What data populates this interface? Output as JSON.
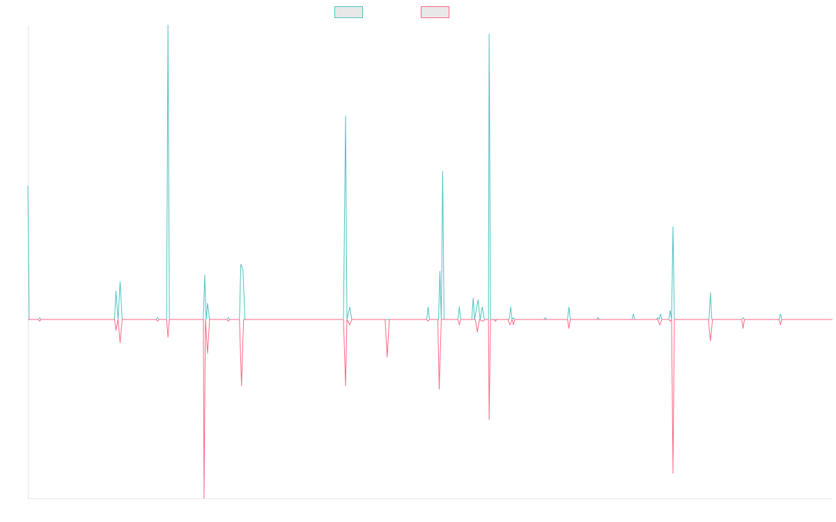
{
  "chart_data": {
    "type": "line",
    "title": "",
    "xlabel": "",
    "ylabel": "",
    "x_range": [
      0,
      1200
    ],
    "ylim": [
      -1.0,
      1.65
    ],
    "grid": false,
    "legend_placement": "top-center",
    "series": [
      {
        "color": "#4bc0c0",
        "fill": "#e8e8e8",
        "points": [
          [
            0,
            0.75
          ],
          [
            2,
            0
          ],
          [
            15,
            0
          ],
          [
            17,
            0.01
          ],
          [
            19,
            0
          ],
          [
            125,
            0
          ],
          [
            127,
            0.16
          ],
          [
            130,
            0
          ],
          [
            133,
            0.21
          ],
          [
            136,
            0
          ],
          [
            185,
            0
          ],
          [
            187,
            0.01
          ],
          [
            189,
            0
          ],
          [
            200,
            0
          ],
          [
            202,
            1.65
          ],
          [
            204,
            0
          ],
          [
            253,
            0
          ],
          [
            255,
            0.25
          ],
          [
            257,
            0
          ],
          [
            259,
            0.09
          ],
          [
            262,
            0
          ],
          [
            287,
            0
          ],
          [
            289,
            0.01
          ],
          [
            291,
            0
          ],
          [
            305,
            0
          ],
          [
            307,
            0.31
          ],
          [
            310,
            0.28
          ],
          [
            313,
            0
          ],
          [
            455,
            0
          ],
          [
            458,
            1.14
          ],
          [
            460,
            0
          ],
          [
            464,
            0.07
          ],
          [
            467,
            0
          ],
          [
            575,
            0
          ],
          [
            577,
            0.07
          ],
          [
            579,
            0
          ],
          [
            592,
            0
          ],
          [
            594,
            0.27
          ],
          [
            596,
            0
          ],
          [
            598,
            0.83
          ],
          [
            600,
            0
          ],
          [
            620,
            0
          ],
          [
            622,
            0.07
          ],
          [
            624,
            0
          ],
          [
            640,
            0
          ],
          [
            642,
            0.12
          ],
          [
            644,
            0
          ],
          [
            649,
            0.11
          ],
          [
            652,
            0
          ],
          [
            655,
            0.07
          ],
          [
            658,
            0
          ],
          [
            664,
            0
          ],
          [
            665,
            1.6
          ],
          [
            667,
            0
          ],
          [
            694,
            0
          ],
          [
            696,
            0.07
          ],
          [
            698,
            0
          ],
          [
            700,
            0.01
          ],
          [
            702,
            0
          ],
          [
            744,
            0
          ],
          [
            746,
            0.01
          ],
          [
            748,
            0
          ],
          [
            778,
            0
          ],
          [
            780,
            0.07
          ],
          [
            782,
            0
          ],
          [
            820,
            0
          ],
          [
            822,
            0.01
          ],
          [
            824,
            0
          ],
          [
            871,
            0
          ],
          [
            873,
            0.03
          ],
          [
            875,
            0
          ],
          [
            906,
            0
          ],
          [
            908,
            0.01
          ],
          [
            910,
            0
          ],
          [
            912,
            0.03
          ],
          [
            914,
            0
          ],
          [
            924,
            0
          ],
          [
            926,
            0.05
          ],
          [
            928,
            0
          ],
          [
            930,
            0.52
          ],
          [
            932,
            0
          ],
          [
            982,
            0
          ],
          [
            984,
            0.15
          ],
          [
            986,
            0
          ],
          [
            1029,
            0
          ],
          [
            1031,
            0.01
          ],
          [
            1033,
            0
          ],
          [
            1083,
            0
          ],
          [
            1085,
            0.03
          ],
          [
            1087,
            0
          ],
          [
            1160,
            0
          ]
        ]
      },
      {
        "color": "#ff6384",
        "fill": "#e8e8e8",
        "points": [
          [
            0,
            0
          ],
          [
            15,
            0
          ],
          [
            17,
            -0.01
          ],
          [
            19,
            0
          ],
          [
            125,
            0
          ],
          [
            127,
            -0.06
          ],
          [
            130,
            0
          ],
          [
            133,
            -0.13
          ],
          [
            136,
            0
          ],
          [
            185,
            0
          ],
          [
            187,
            -0.01
          ],
          [
            189,
            0
          ],
          [
            200,
            0
          ],
          [
            202,
            -0.1
          ],
          [
            204,
            0
          ],
          [
            253,
            0
          ],
          [
            254,
            -1.0
          ],
          [
            256,
            0
          ],
          [
            259,
            -0.19
          ],
          [
            262,
            0
          ],
          [
            287,
            0
          ],
          [
            289,
            -0.01
          ],
          [
            291,
            0
          ],
          [
            305,
            0
          ],
          [
            308,
            -0.37
          ],
          [
            311,
            0
          ],
          [
            455,
            0
          ],
          [
            458,
            -0.37
          ],
          [
            460,
            0
          ],
          [
            464,
            -0.03
          ],
          [
            467,
            0
          ],
          [
            515,
            0
          ],
          [
            518,
            -0.21
          ],
          [
            521,
            0
          ],
          [
            575,
            0
          ],
          [
            577,
            -0.01
          ],
          [
            579,
            0
          ],
          [
            591,
            0
          ],
          [
            593,
            -0.39
          ],
          [
            596,
            0
          ],
          [
            620,
            0
          ],
          [
            622,
            -0.03
          ],
          [
            624,
            0
          ],
          [
            645,
            0
          ],
          [
            648,
            -0.07
          ],
          [
            651,
            0
          ],
          [
            656,
            -0.01
          ],
          [
            659,
            0
          ],
          [
            664,
            0
          ],
          [
            665,
            -0.56
          ],
          [
            667,
            0
          ],
          [
            672,
            0
          ],
          [
            674,
            -0.01
          ],
          [
            676,
            0
          ],
          [
            692,
            0
          ],
          [
            695,
            -0.03
          ],
          [
            698,
            0
          ],
          [
            700,
            -0.03
          ],
          [
            702,
            0
          ],
          [
            778,
            0
          ],
          [
            780,
            -0.05
          ],
          [
            782,
            0
          ],
          [
            908,
            0
          ],
          [
            911,
            -0.03
          ],
          [
            914,
            0
          ],
          [
            924,
            0
          ],
          [
            926,
            -0.01
          ],
          [
            928,
            0
          ],
          [
            930,
            -0.86
          ],
          [
            932,
            0
          ],
          [
            981,
            0
          ],
          [
            984,
            -0.12
          ],
          [
            987,
            0
          ],
          [
            1029,
            0
          ],
          [
            1031,
            -0.05
          ],
          [
            1033,
            0
          ],
          [
            1083,
            0
          ],
          [
            1085,
            -0.03
          ],
          [
            1087,
            0
          ],
          [
            1160,
            0
          ]
        ]
      }
    ]
  }
}
